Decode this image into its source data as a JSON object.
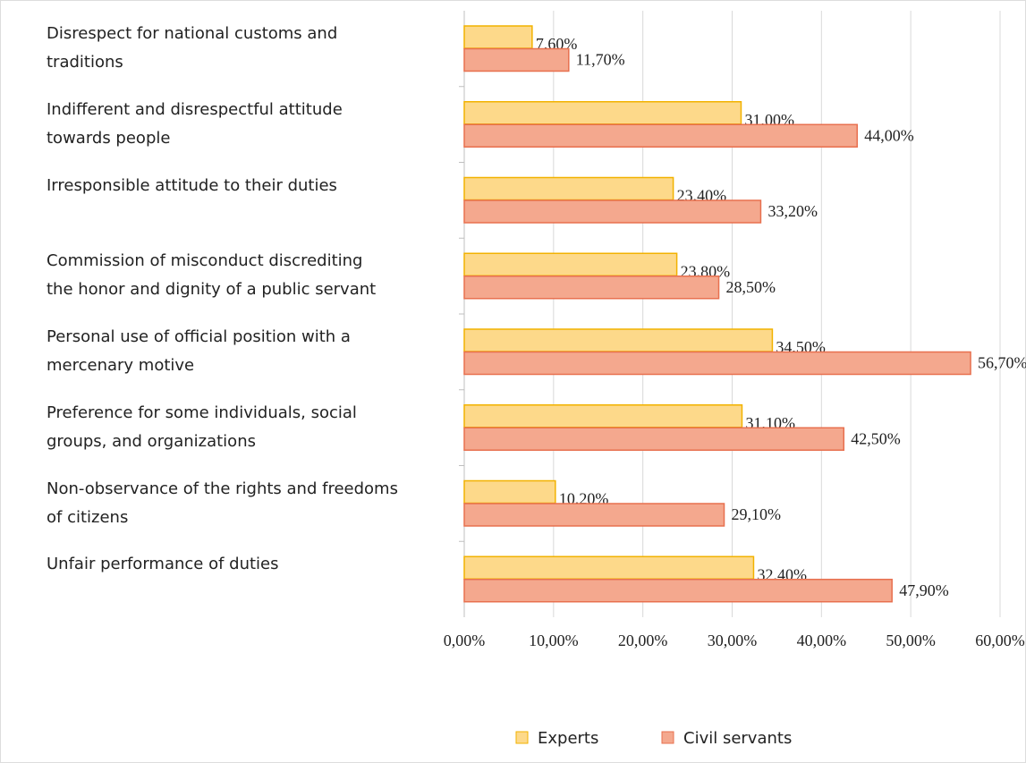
{
  "chart_data": {
    "type": "hbar",
    "categories": [
      "Disrespect for national customs and\ntraditions",
      "Indifferent and disrespectful attitude\ntowards people",
      "Irresponsible attitude to their duties",
      "Commission of misconduct discrediting\nthe honor and dignity of a public servant",
      "Personal use of official position with a\nmercenary motive",
      "Preference for some individuals, social\ngroups, and organizations",
      "Non-observance of the rights and freedoms\nof citizens",
      "Unfair performance of duties"
    ],
    "series": [
      {
        "name": "Experts",
        "color": "#fdd98a",
        "edge": "#f2b200",
        "values": [
          7.6,
          31.0,
          23.4,
          23.8,
          34.5,
          31.1,
          10.2,
          32.4
        ],
        "value_labels": [
          "7,60%",
          "31,00%",
          "23,40%",
          "23,80%",
          "34,50%",
          "31,10%",
          "10,20%",
          "32,40%"
        ]
      },
      {
        "name": "Civil servants",
        "color": "#f4a88e",
        "edge": "#e8704f",
        "values": [
          11.7,
          44.0,
          33.2,
          28.5,
          56.7,
          42.5,
          29.1,
          47.9
        ],
        "value_labels": [
          "11,70%",
          "44,00%",
          "33,20%",
          "28,50%",
          "56,70%",
          "42,50%",
          "29,10%",
          "47,90%"
        ]
      }
    ],
    "xlim": [
      0,
      60
    ],
    "xticks": [
      {
        "value": 0,
        "label": "0,00%"
      },
      {
        "value": 10,
        "label": "10,00%"
      },
      {
        "value": 20,
        "label": "20,00%"
      },
      {
        "value": 30,
        "label": "30,00%"
      },
      {
        "value": 40,
        "label": "40,00%"
      },
      {
        "value": 50,
        "label": "50,00%"
      },
      {
        "value": 60,
        "label": "60,00%"
      }
    ],
    "grid": true,
    "legend": "bottom"
  }
}
